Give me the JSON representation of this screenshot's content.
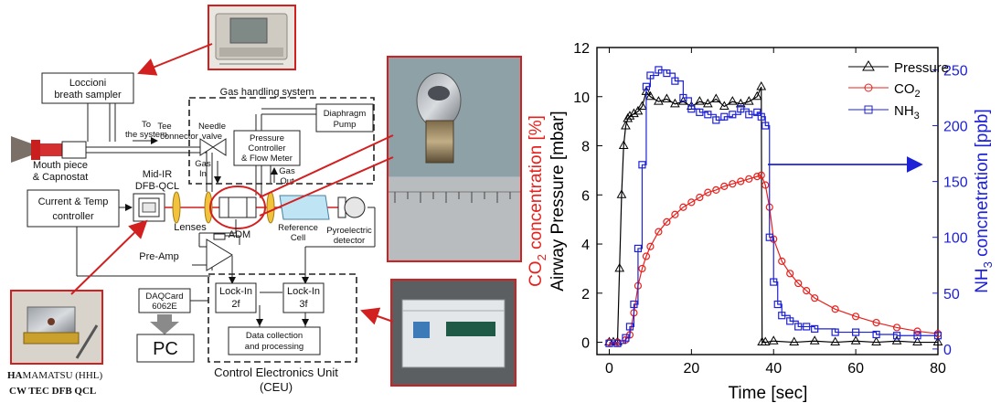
{
  "diagram": {
    "sampler": "Loccioni",
    "sampler2": "breath sampler",
    "gas_system": "Gas handling system",
    "to_system": "To",
    "to_system2": "the system",
    "tee": "Tee",
    "tee2": "connector",
    "needle": "Needle",
    "needle2": "valve",
    "diaphragm": "Diaphragm",
    "diaphragm2": "Pump",
    "pressure_ctrl": "Pressure",
    "pressure_ctrl2": "Controller",
    "pressure_ctrl3": "& Flow Meter",
    "gas_in": "Gas",
    "gas_in2": "In",
    "gas_out": "Gas",
    "gas_out2": "Out",
    "mouth": "Mouth piece",
    "mouth2": "& Capnostat",
    "midir": "Mid-IR",
    "dfb": "DFB-QCL",
    "current": "Current & Temp",
    "current2": "controller",
    "lenses": "Lenses",
    "adm": "ADM",
    "ref": "Reference",
    "ref2": "Cell",
    "pyro": "Pyroelectric",
    "pyro2": "detector",
    "preamp": "Pre-Amp",
    "daq": "DAQCard",
    "daq2": "6062E",
    "pc": "PC",
    "lockin2": "Lock-In",
    "lockin2b": "2f",
    "lockin3": "Lock-In",
    "lockin3b": "3f",
    "datacoll": "Data collection",
    "datacoll2": "and processing",
    "ceu": "Control Electronics Unit",
    "ceu2": "(CEU)",
    "hama_bold": "HA",
    "hama_rest": "MAMATSU (HHL)",
    "cwtec": "CW TEC DFB QCL"
  },
  "chart_data": {
    "type": "line",
    "x_label": "Time [sec]",
    "y_left_label_prefix": "Airway Pressure [mbar]",
    "y_left_label_co2_a": "CO",
    "y_left_label_co2_sub": "2",
    "y_left_label_co2_b": " concentration [%]",
    "y_right_label_a": "NH",
    "y_right_label_sub": "3",
    "y_right_label_b": " concnetration [ppb]",
    "xlim": [
      -3,
      80
    ],
    "ylim_left": [
      -0.5,
      12
    ],
    "ylim_right": [
      -5,
      270
    ],
    "x_ticks": [
      "0",
      "20",
      "40",
      "60",
      "80"
    ],
    "y_left_ticks": [
      "0",
      "2",
      "4",
      "6",
      "8",
      "10",
      "12"
    ],
    "y_right_ticks": [
      "0",
      "50",
      "100",
      "150",
      "200",
      "250"
    ],
    "legend": [
      {
        "name": "Pressure",
        "color": "#000000",
        "marker": "triangle"
      },
      {
        "name": "CO",
        "sub": "2",
        "color": "#e8201c",
        "marker": "circle"
      },
      {
        "name": "NH",
        "sub": "3",
        "color": "#1e22d6",
        "marker": "square"
      }
    ],
    "series": [
      {
        "name": "Pressure",
        "axis": "left",
        "color": "#000000",
        "x": [
          0,
          1,
          2,
          2.5,
          3,
          3.5,
          4,
          4.5,
          5,
          6,
          7,
          8,
          9,
          10,
          12,
          14,
          16,
          18,
          20,
          22,
          24,
          26,
          28,
          30,
          32,
          34,
          36,
          37,
          37.2,
          38,
          40,
          45,
          50,
          55,
          60,
          65,
          70,
          75,
          80
        ],
        "y": [
          0,
          0,
          0,
          3,
          6,
          8,
          8.8,
          9.1,
          9.2,
          9.3,
          9.4,
          9.6,
          10.2,
          10,
          9.8,
          9.9,
          9.7,
          9.8,
          9.6,
          9.8,
          9.7,
          9.9,
          9.6,
          9.8,
          9.7,
          9.8,
          10,
          10.4,
          0,
          0,
          0.05,
          0,
          0.05,
          0,
          0.05,
          0,
          0.05,
          0,
          0
        ]
      },
      {
        "name": "CO2",
        "axis": "left",
        "color": "#e8201c",
        "x": [
          0,
          2,
          4,
          5,
          6,
          7,
          8,
          9,
          10,
          12,
          14,
          16,
          18,
          20,
          22,
          24,
          26,
          28,
          30,
          32,
          34,
          36,
          37,
          38,
          39,
          40,
          42,
          44,
          46,
          48,
          50,
          55,
          60,
          65,
          70,
          75,
          80
        ],
        "y": [
          0,
          0,
          0.1,
          0.3,
          1.2,
          2.3,
          3,
          3.5,
          3.9,
          4.5,
          4.9,
          5.2,
          5.5,
          5.7,
          5.9,
          6.1,
          6.2,
          6.35,
          6.45,
          6.55,
          6.65,
          6.75,
          6.8,
          6.4,
          5.5,
          4.2,
          3.3,
          2.8,
          2.4,
          2.1,
          1.8,
          1.35,
          1.05,
          0.8,
          0.6,
          0.45,
          0.35
        ]
      },
      {
        "name": "NH3",
        "axis": "right",
        "color": "#1e22d6",
        "x": [
          0,
          2,
          4,
          5,
          6,
          7,
          8,
          9,
          10,
          12,
          14,
          16,
          18,
          20,
          22,
          24,
          26,
          28,
          30,
          32,
          34,
          36,
          37,
          38,
          39,
          40,
          41,
          42,
          44,
          46,
          48,
          50,
          55,
          60,
          65,
          70,
          75,
          80
        ],
        "y": [
          5,
          5,
          10,
          20,
          40,
          90,
          165,
          235,
          245,
          250,
          247,
          240,
          225,
          215,
          212,
          210,
          205,
          208,
          210,
          215,
          210,
          212,
          208,
          200,
          100,
          60,
          40,
          30,
          25,
          20,
          20,
          18,
          15,
          15,
          13,
          12,
          12,
          12
        ]
      }
    ]
  }
}
